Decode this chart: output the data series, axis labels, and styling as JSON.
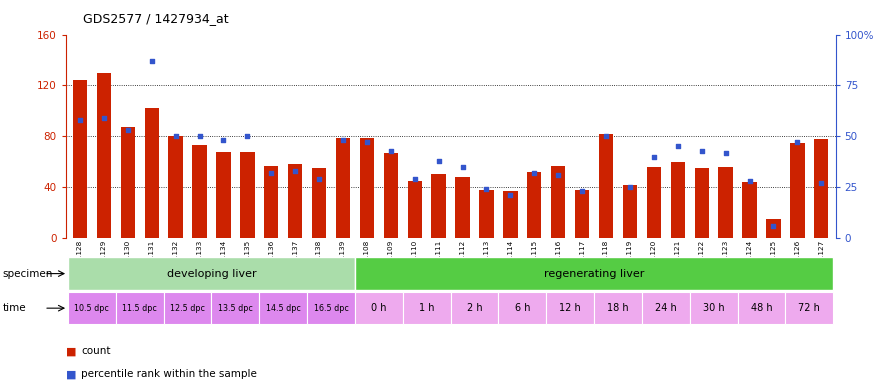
{
  "title": "GDS2577 / 1427934_at",
  "samples": [
    "GSM161128",
    "GSM161129",
    "GSM161130",
    "GSM161131",
    "GSM161132",
    "GSM161133",
    "GSM161134",
    "GSM161135",
    "GSM161136",
    "GSM161137",
    "GSM161138",
    "GSM161139",
    "GSM161108",
    "GSM161109",
    "GSM161110",
    "GSM161111",
    "GSM161112",
    "GSM161113",
    "GSM161114",
    "GSM161115",
    "GSM161116",
    "GSM161117",
    "GSM161118",
    "GSM161119",
    "GSM161120",
    "GSM161121",
    "GSM161122",
    "GSM161123",
    "GSM161124",
    "GSM161125",
    "GSM161126",
    "GSM161127"
  ],
  "counts": [
    124,
    130,
    87,
    102,
    80,
    73,
    68,
    68,
    57,
    58,
    55,
    79,
    79,
    67,
    45,
    50,
    48,
    38,
    37,
    52,
    57,
    38,
    82,
    42,
    56,
    60,
    55,
    56,
    44,
    15,
    75,
    78
  ],
  "percentiles": [
    58,
    59,
    53,
    87,
    50,
    50,
    48,
    50,
    32,
    33,
    29,
    48,
    47,
    43,
    29,
    38,
    35,
    24,
    21,
    32,
    31,
    23,
    50,
    25,
    40,
    45,
    43,
    42,
    28,
    6,
    47,
    27
  ],
  "ylim_left": [
    0,
    160
  ],
  "ylim_right": [
    0,
    100
  ],
  "yticks_left": [
    0,
    40,
    80,
    120,
    160
  ],
  "yticks_right": [
    0,
    25,
    50,
    75,
    100
  ],
  "ytick_labels_right": [
    "0",
    "25",
    "50",
    "75",
    "100%"
  ],
  "bar_color": "#cc2200",
  "dot_color": "#3355cc",
  "specimen_groups": [
    {
      "label": "developing liver",
      "start": 0,
      "end": 12,
      "color": "#aaddaa"
    },
    {
      "label": "regenerating liver",
      "start": 12,
      "end": 32,
      "color": "#55cc44"
    }
  ],
  "time_groups_developing": [
    {
      "label": "10.5 dpc",
      "bars": [
        0,
        1
      ]
    },
    {
      "label": "11.5 dpc",
      "bars": [
        2,
        3
      ]
    },
    {
      "label": "12.5 dpc",
      "bars": [
        4,
        5
      ]
    },
    {
      "label": "13.5 dpc",
      "bars": [
        6,
        7
      ]
    },
    {
      "label": "14.5 dpc",
      "bars": [
        8,
        9
      ]
    },
    {
      "label": "16.5 dpc",
      "bars": [
        10,
        11
      ]
    }
  ],
  "time_groups_regenerating": [
    {
      "label": "0 h",
      "bars": [
        12,
        13
      ]
    },
    {
      "label": "1 h",
      "bars": [
        14,
        15
      ]
    },
    {
      "label": "2 h",
      "bars": [
        16,
        17
      ]
    },
    {
      "label": "6 h",
      "bars": [
        18,
        19
      ]
    },
    {
      "label": "12 h",
      "bars": [
        20,
        21
      ]
    },
    {
      "label": "18 h",
      "bars": [
        22,
        23
      ]
    },
    {
      "label": "24 h",
      "bars": [
        24,
        25
      ]
    },
    {
      "label": "30 h",
      "bars": [
        26,
        27
      ]
    },
    {
      "label": "48 h",
      "bars": [
        28,
        29
      ]
    },
    {
      "label": "72 h",
      "bars": [
        30,
        31
      ]
    }
  ],
  "time_color": "#dd88ee",
  "time_color_regen": "#eeaaee"
}
